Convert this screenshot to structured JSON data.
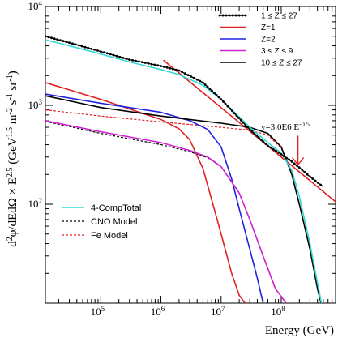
{
  "chart_data": {
    "type": "line",
    "xlabel": "Energy (GeV)",
    "ylabel": "d²φ/dE dΩ × E^2.5 (GeV^1.5 m^-2 s^-1 sr^-1)",
    "ylabel_parts": {
      "lead": "d",
      "lead_sup": "2",
      "mid": "φ/dEdΩ × E",
      "e_sup": "2.5",
      "unit_open": " (GeV",
      "gev_sup": "1.5",
      "m": " m",
      "m_sup": "-2",
      "s": " s",
      "s_sup": "-1",
      "sr": " sr",
      "sr_sup": "-1",
      "close": ")"
    },
    "x_scale": "log",
    "y_scale": "log",
    "xlim": [
      12000,
      800000000
    ],
    "ylim": [
      10,
      10000
    ],
    "x_ticks": [
      {
        "value": 100000,
        "base": "10",
        "exp": "5"
      },
      {
        "value": 1000000,
        "base": "10",
        "exp": "6"
      },
      {
        "value": 10000000,
        "base": "10",
        "exp": "7"
      },
      {
        "value": 100000000,
        "base": "10",
        "exp": "8"
      }
    ],
    "y_ticks": [
      {
        "value": 100,
        "base": "10",
        "exp": "2"
      },
      {
        "value": 1000,
        "base": "10",
        "exp": "3"
      },
      {
        "value": 10000,
        "base": "10",
        "exp": "4"
      }
    ],
    "grid": false,
    "legend_top_right": [
      {
        "label": "1 ≤ Z ≤ 27",
        "color": "#000000",
        "style": "dotted-markers"
      },
      {
        "label": "Z=1",
        "color": "#e02020",
        "style": "solid"
      },
      {
        "label": "Z=2",
        "color": "#2020e0",
        "style": "solid"
      },
      {
        "label": "3 ≤ Z ≤ 9",
        "color": "#d020d0",
        "style": "solid"
      },
      {
        "label": "10 ≤ Z ≤ 27",
        "color": "#000000",
        "style": "solid"
      }
    ],
    "legend_bottom_left": [
      {
        "label": "4-CompTotal",
        "color": "#30d8d8",
        "style": "solid"
      },
      {
        "label": "CNO Model",
        "color": "#000000",
        "style": "dashed"
      },
      {
        "label": "Fe Model",
        "color": "#e02020",
        "style": "dashed"
      }
    ],
    "annotation": {
      "text": "y=3.0E6 E",
      "exponent": "-0.5",
      "color": "#e02020",
      "arrow_target": {
        "x": 190000000,
        "y": 250
      }
    },
    "series": [
      {
        "name": "1 ≤ Z ≤ 27",
        "color": "#000000",
        "style": "dotted-markers",
        "x": [
          12000,
          30000,
          100000,
          300000,
          1000000,
          2000000,
          5000000,
          10000000,
          30000000,
          60000000,
          100000000,
          150000000,
          200000000,
          300000000,
          500000000
        ],
        "y": [
          5000,
          4300,
          3500,
          2900,
          2500,
          2250,
          1700,
          1150,
          570,
          390,
          320,
          270,
          235,
          190,
          150
        ]
      },
      {
        "name": "Z=1",
        "color": "#e02020",
        "style": "solid",
        "x": [
          12000,
          100000,
          1000000,
          2000000,
          3000000,
          5000000,
          7000000,
          10000000,
          15000000,
          20000000,
          25000000
        ],
        "y": [
          1700,
          1150,
          720,
          580,
          450,
          230,
          110,
          50,
          20,
          12,
          10
        ]
      },
      {
        "name": "Z=2",
        "color": "#2020e0",
        "style": "solid",
        "x": [
          12000,
          100000,
          1000000,
          3000000,
          6000000,
          10000000,
          15000000,
          20000000,
          30000000,
          40000000,
          50000000
        ],
        "y": [
          1300,
          1050,
          850,
          700,
          570,
          380,
          180,
          90,
          35,
          18,
          10
        ]
      },
      {
        "name": "3 ≤ Z ≤ 9",
        "color": "#d020d0",
        "style": "solid",
        "x": [
          12000,
          100000,
          1000000,
          3000000,
          6000000,
          10000000,
          20000000,
          30000000,
          50000000,
          80000000,
          120000000,
          150000000
        ],
        "y": [
          700,
          540,
          420,
          350,
          300,
          240,
          130,
          70,
          30,
          14,
          10,
          8
        ]
      },
      {
        "name": "10 ≤ Z ≤ 27",
        "color": "#000000",
        "style": "solid",
        "x": [
          12000,
          100000,
          1000000,
          10000000,
          30000000,
          60000000,
          100000000,
          150000000,
          200000000,
          300000000,
          400000000,
          500000000
        ],
        "y": [
          1250,
          950,
          780,
          660,
          600,
          520,
          380,
          200,
          100,
          35,
          14,
          8
        ]
      },
      {
        "name": "4-CompTotal",
        "color": "#30d8d8",
        "style": "solid",
        "x": [
          12000,
          30000,
          100000,
          300000,
          1000000,
          2000000,
          5000000,
          10000000,
          30000000,
          60000000,
          100000000,
          150000000,
          200000000,
          300000000,
          400000000,
          500000000
        ],
        "y": [
          4600,
          4000,
          3300,
          2750,
          2300,
          2050,
          1600,
          1150,
          600,
          420,
          330,
          220,
          120,
          40,
          16,
          8
        ]
      },
      {
        "name": "CNO Model",
        "color": "#000000",
        "style": "dashed",
        "x": [
          12000,
          100000,
          1000000,
          3000000,
          6000000,
          10000000,
          20000000,
          30000000,
          50000000,
          80000000,
          120000000,
          150000000
        ],
        "y": [
          690,
          520,
          400,
          340,
          295,
          240,
          130,
          70,
          30,
          14,
          10,
          8
        ]
      },
      {
        "name": "Fe Model",
        "color": "#e02020",
        "style": "dashed",
        "x": [
          12000,
          100000,
          1000000,
          10000000,
          30000000,
          60000000,
          100000000,
          150000000,
          200000000,
          300000000,
          400000000,
          500000000
        ],
        "y": [
          900,
          780,
          680,
          600,
          560,
          500,
          370,
          200,
          100,
          35,
          14,
          8
        ]
      },
      {
        "name": "y=3.0E6 E^-0.5",
        "color": "#e02020",
        "style": "solid",
        "x": [
          1100000,
          800000000
        ],
        "y": [
          2860,
          106
        ]
      }
    ]
  }
}
